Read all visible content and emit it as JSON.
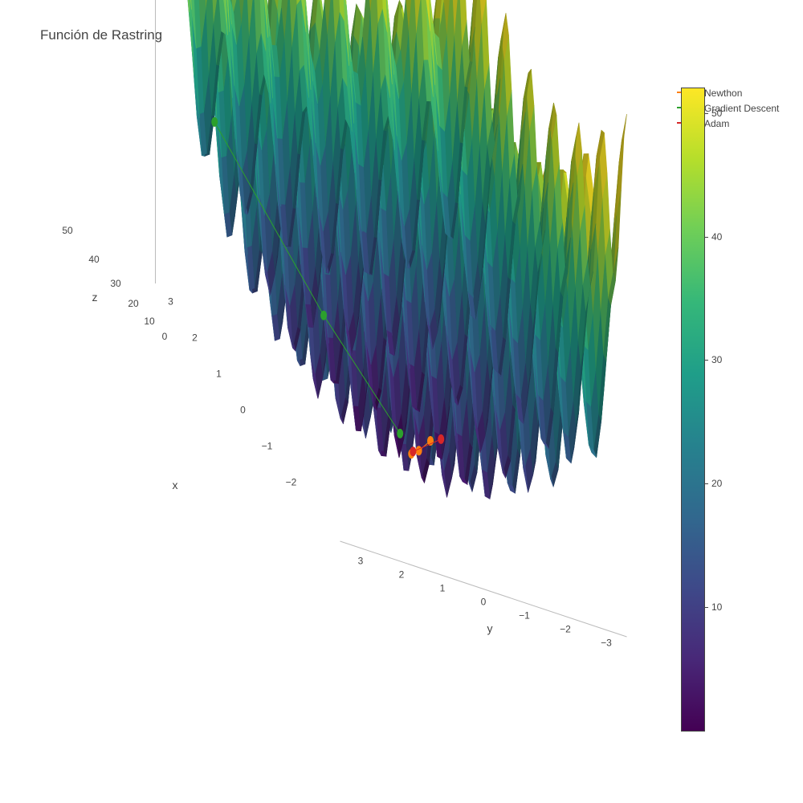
{
  "title": "Función de Rastring",
  "legend": [
    {
      "name": "Newthon",
      "color": "#ff7f0e"
    },
    {
      "name": "Gradient Descent",
      "color": "#2ca02c"
    },
    {
      "name": "Adam",
      "color": "#d62728"
    }
  ],
  "colorbar": {
    "colorscale": "Viridis",
    "colors": [
      "#440154",
      "#482878",
      "#3e4989",
      "#31688e",
      "#26828e",
      "#1f9e89",
      "#35b779",
      "#6ece58",
      "#b5de2b",
      "#fde725"
    ],
    "range": [
      0,
      52
    ],
    "ticks": [
      "10",
      "20",
      "30",
      "40",
      "50"
    ]
  },
  "chart_data": {
    "type": "surface",
    "title": "Función de Rastring",
    "function": "Rastrigin",
    "x_range": [
      -3.5,
      3.5
    ],
    "y_range": [
      -3.5,
      3.5
    ],
    "z_range": [
      0,
      52
    ],
    "axis_labels": {
      "x": "x",
      "y": "y",
      "z": "z"
    },
    "x_ticks": [
      "−2",
      "−1",
      "0",
      "1",
      "2",
      "3"
    ],
    "y_ticks": [
      "3",
      "2",
      "1",
      "0",
      "−1",
      "−2",
      "−3"
    ],
    "z_ticks": [
      "0",
      "10",
      "20",
      "30",
      "40",
      "50"
    ],
    "series": [
      {
        "name": "Newthon",
        "color": "#ff7f0e",
        "points": [
          {
            "x": 0.4,
            "y": -1.0,
            "z": 2
          },
          {
            "x": 0.2,
            "y": -0.6,
            "z": 1
          },
          {
            "x": 0.0,
            "y": -0.3,
            "z": 1
          }
        ]
      },
      {
        "name": "Gradient Descent",
        "color": "#2ca02c",
        "points": [
          {
            "x": 2.9,
            "y": 2.8,
            "z": 24
          },
          {
            "x": 1.6,
            "y": 0.9,
            "z": 9
          },
          {
            "x": 0.3,
            "y": -0.2,
            "z": 2
          }
        ]
      },
      {
        "name": "Adam",
        "color": "#d62728",
        "points": [
          {
            "x": 0.3,
            "y": -1.2,
            "z": 3
          },
          {
            "x": 0.1,
            "y": -0.4,
            "z": 1
          }
        ]
      }
    ]
  }
}
